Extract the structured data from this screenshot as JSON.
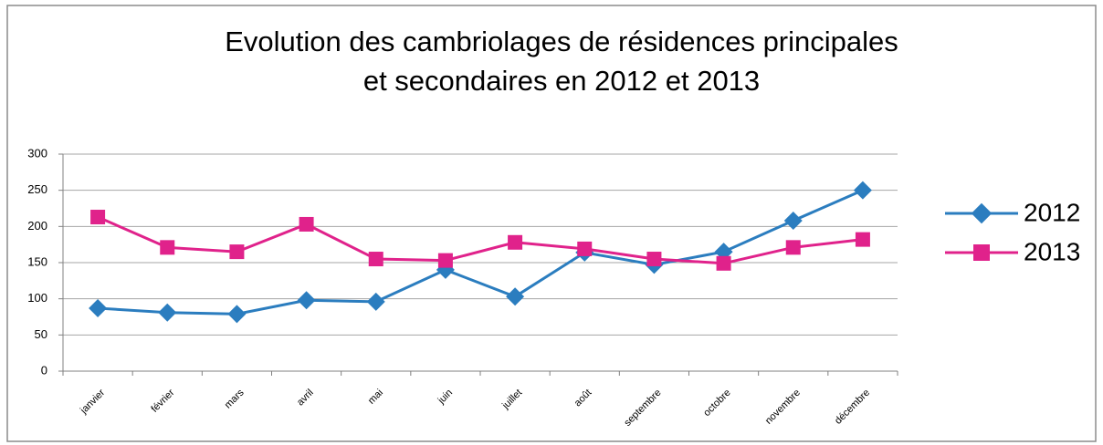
{
  "chart_data": {
    "type": "line",
    "title": [
      "Evolution des cambriolages de résidences principales",
      "et secondaires en 2012 et 2013"
    ],
    "categories": [
      "janvier",
      "février",
      "mars",
      "avril",
      "mai",
      "juin",
      "juillet",
      "août",
      "septembre",
      "octobre",
      "novembre",
      "décembre"
    ],
    "series": [
      {
        "name": "2012",
        "color": "#2b7dbf",
        "marker": "diamond",
        "values": [
          87,
          81,
          79,
          98,
          96,
          140,
          103,
          164,
          147,
          165,
          208,
          250
        ]
      },
      {
        "name": "2013",
        "color": "#e0228b",
        "marker": "square",
        "values": [
          213,
          171,
          165,
          203,
          155,
          153,
          178,
          169,
          155,
          149,
          171,
          182
        ]
      }
    ],
    "ylim": [
      0,
      300
    ],
    "yticks": [
      0,
      50,
      100,
      150,
      200,
      250,
      300
    ],
    "grid": true,
    "legend": "right"
  }
}
